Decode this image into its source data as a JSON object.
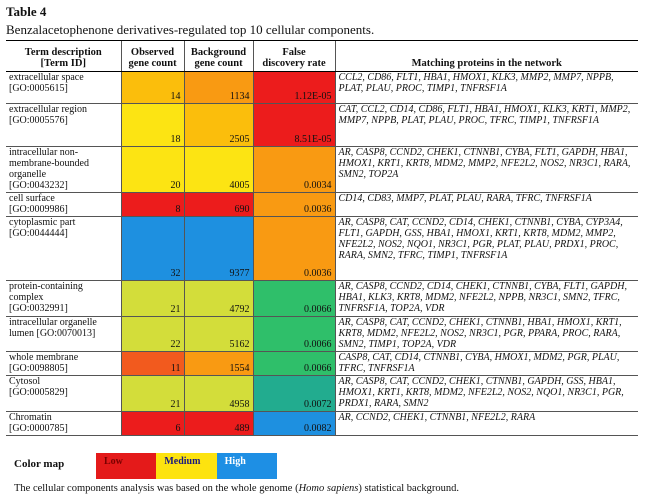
{
  "caption": {
    "label": "Table 4",
    "title": "Benzalacetophenone derivatives-regulated top 10 cellular components."
  },
  "colors": {
    "red": "#ec1c1c",
    "orange_red": "#f25a1e",
    "orange": "#f99a12",
    "amber": "#fbbe0c",
    "yellow": "#fce413",
    "yellow_green": "#d3dd3a",
    "green": "#2fbf6a",
    "teal": "#22ac8f",
    "blue": "#1e90e0",
    "legend_low": "#e41a1a",
    "legend_medium": "#fde30f",
    "legend_high": "#1e8fe4"
  },
  "table": {
    "headers": [
      "Term description\n[Term ID]",
      "Observed\ngene count",
      "Background\ngene count",
      "False\ndiscovery rate",
      "Matching proteins in the network"
    ],
    "rows": [
      {
        "term": "extracellular space\n[GO:0005615]",
        "observed": "14",
        "observed_color": "amber",
        "background": "1134",
        "background_color": "orange",
        "fdr": "1.12E-05",
        "fdr_color": "red",
        "proteins": "CCL2, CD86, FLT1, HBA1, HMOX1, KLK3, MMP2, MMP7, NPPB, PLAT, PLAU, PROC, TIMP1, TNFRSF1A",
        "h": 32
      },
      {
        "term": "extracellular region\n[GO:0005576]",
        "observed": "18",
        "observed_color": "yellow",
        "background": "2505",
        "background_color": "amber",
        "fdr": "8.51E-05",
        "fdr_color": "red",
        "proteins": "CAT, CCL2, CD14, CD86, FLT1, HBA1, HMOX1, KLK3, KRT1, MMP2, MMP7, NPPB, PLAT, PLAU, PROC, TFRC, TIMP1, TNFRSF1A",
        "h": 43
      },
      {
        "term": "intracellular non-\nmembrane-bounded\norganelle\n[GO:0043232]",
        "observed": "20",
        "observed_color": "yellow",
        "background": "4005",
        "background_color": "yellow",
        "fdr": "0.0034",
        "fdr_color": "orange",
        "proteins": "AR, CASP8, CCND2, CHEK1, CTNNB1, CYBA, FLT1, GAPDH, HBA1, HMOX1, KRT1, KRT8, MDM2, MMP2, NFE2L2, NOS2, NR3C1, RARA, SMN2, TOP2A",
        "h": 46
      },
      {
        "term": "cell surface\n[GO:0009986]",
        "observed": "8",
        "observed_color": "red",
        "background": "690",
        "background_color": "red",
        "fdr": "0.0036",
        "fdr_color": "orange",
        "proteins": "CD14, CD83, MMP7, PLAT, PLAU, RARA, TFRC, TNFRSF1A",
        "h": 24
      },
      {
        "term": "cytoplasmic part\n[GO:0044444]",
        "observed": "32",
        "observed_color": "blue",
        "background": "9377",
        "background_color": "blue",
        "fdr": "0.0036",
        "fdr_color": "orange",
        "proteins": "AR, CASP8, CAT, CCND2, CD14, CHEK1, CTNNB1, CYBA, CYP3A4, FLT1, GAPDH, GSS, HBA1, HMOX1, KRT1, KRT8, MDM2, MMP2, NFE2L2, NOS2, NQO1, NR3C1, PGR, PLAT, PLAU, PRDX1, PROC, RARA, SMN2, TFRC, TIMP1, TNFRSF1A",
        "h": 64
      },
      {
        "term": "protein-containing\ncomplex\n[GO:0032991]",
        "observed": "21",
        "observed_color": "yellow_green",
        "background": "4792",
        "background_color": "yellow_green",
        "fdr": "0.0066",
        "fdr_color": "green",
        "proteins": "AR, CASP8, CCND2, CD14, CHEK1, CTNNB1, CYBA, FLT1, GAPDH, HBA1, KLK3, KRT8, MDM2, NFE2L2, NPPB, NR3C1, SMN2, TFRC, TNFRSF1A, TOP2A, VDR",
        "h": 36
      },
      {
        "term": "intracellular organelle\nlumen [GO:0070013]",
        "observed": "22",
        "observed_color": "yellow_green",
        "background": "5162",
        "background_color": "yellow_green",
        "fdr": "0.0066",
        "fdr_color": "green",
        "proteins": "AR, CASP8, CAT, CCND2, CHEK1, CTNNB1, HBA1, HMOX1, KRT1, KRT8, MDM2, NFE2L2, NOS2, NR3C1, PGR, PPARA, PROC, RARA, SMN2, TIMP1, TOP2A, VDR",
        "h": 35
      },
      {
        "term": "whole membrane\n[GO:0098805]",
        "observed": "11",
        "observed_color": "orange_red",
        "background": "1554",
        "background_color": "orange",
        "fdr": "0.0066",
        "fdr_color": "green",
        "proteins": "CASP8, CAT, CD14, CTNNB1, CYBA, HMOX1, MDM2, PGR, PLAU, TFRC, TNFRSF1A",
        "h": 24
      },
      {
        "term": "Cytosol\n[GO:0005829]",
        "observed": "21",
        "observed_color": "yellow_green",
        "background": "4958",
        "background_color": "yellow_green",
        "fdr": "0.0072",
        "fdr_color": "teal",
        "proteins": "AR, CASP8, CAT, CCND2, CHEK1, CTNNB1, GAPDH, GSS, HBA1, HMOX1, KRT1, KRT8, MDM2, NFE2L2, NOS2, NQO1, NR3C1, PGR, PRDX1, RARA, SMN2",
        "h": 36
      },
      {
        "term": "Chromatin\n[GO:0000785]",
        "observed": "6",
        "observed_color": "red",
        "background": "489",
        "background_color": "red",
        "fdr": "0.0082",
        "fdr_color": "blue",
        "proteins": "AR, CCND2, CHEK1, CTNNB1, NFE2L2, RARA",
        "h": 24
      }
    ]
  },
  "legend": {
    "label": "Color map",
    "low": "Low",
    "medium": "Medium",
    "high": "High"
  },
  "footnote": {
    "before": "The cellular components analysis was based on the whole genome (",
    "species": "Homo sapiens",
    "after": ") statistical background."
  }
}
